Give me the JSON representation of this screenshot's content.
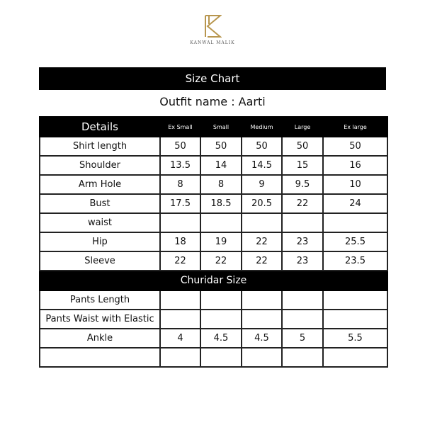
{
  "brand": {
    "name": "KANWAL MALIK",
    "logo_color": "#b8964e"
  },
  "title": "Size Chart",
  "outfit": {
    "label": "Outfit name :",
    "name": "Aarti"
  },
  "header": [
    "Details",
    "Ex Small",
    "Small",
    "Medium",
    "Large",
    "Ex large"
  ],
  "shirt_rows": [
    {
      "label": "Shirt length",
      "values": [
        "50",
        "50",
        "50",
        "50",
        "50"
      ]
    },
    {
      "label": "Shoulder",
      "values": [
        "13.5",
        "14",
        "14.5",
        "15",
        "16"
      ]
    },
    {
      "label": "Arm Hole",
      "values": [
        "8",
        "8",
        "9",
        "9.5",
        "10"
      ]
    },
    {
      "label": "Bust",
      "values": [
        "17.5",
        "18.5",
        "20.5",
        "22",
        "24"
      ]
    },
    {
      "label": "waist",
      "values": [
        "",
        "",
        "",
        "",
        ""
      ]
    },
    {
      "label": "Hip",
      "values": [
        "18",
        "19",
        "22",
        "23",
        "25.5"
      ]
    },
    {
      "label": "Sleeve",
      "values": [
        "22",
        "22",
        "22",
        "23",
        "23.5"
      ]
    }
  ],
  "churidar_title": "Churidar Size",
  "churidar_rows": [
    {
      "label": "Pants Length",
      "values": [
        "",
        "",
        "",
        "",
        ""
      ]
    },
    {
      "label": "Pants Waist with Elastic",
      "values": [
        "",
        "",
        "",
        "",
        ""
      ]
    },
    {
      "label": "Ankle",
      "values": [
        "4",
        "4.5",
        "4.5",
        "5",
        "5.5"
      ]
    },
    {
      "label": "",
      "values": [
        "",
        "",
        "",
        "",
        ""
      ]
    }
  ]
}
